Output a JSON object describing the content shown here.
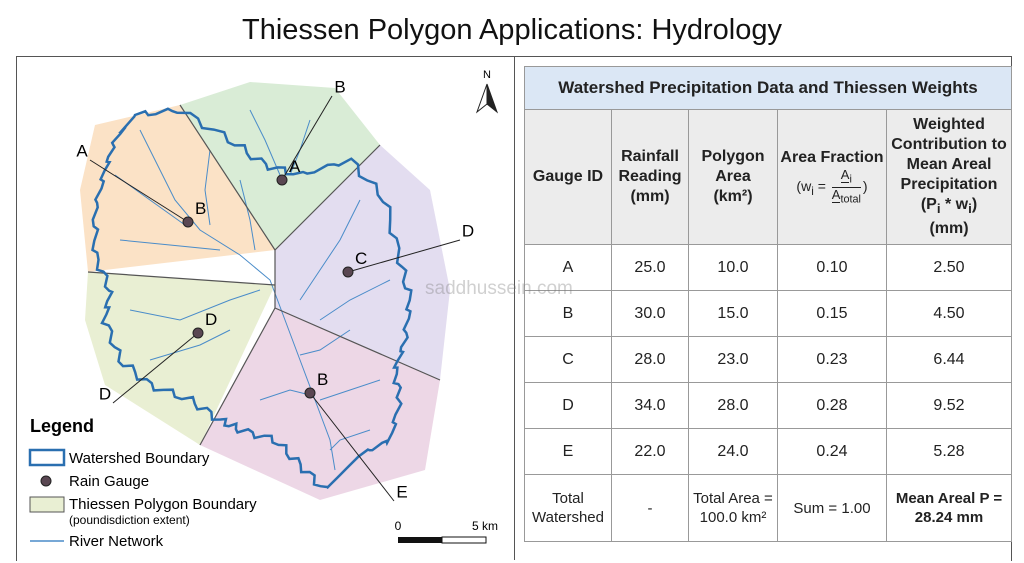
{
  "header": {
    "title": "Thiessen Polygon Applications: Hydrology"
  },
  "map": {
    "north": "N",
    "gauges": [
      "A",
      "B",
      "C",
      "D",
      "B"
    ],
    "callouts": [
      "A",
      "B",
      "D",
      "D",
      "E"
    ],
    "legend": {
      "title": "Legend",
      "items": [
        "Watershed Boundary",
        "Rain Gauge",
        "Thiessen Polygon Boundary",
        "River Network"
      ],
      "note": "(poundisdiction extent)"
    },
    "scale": {
      "start": "0",
      "end": "5 km"
    }
  },
  "watermark": "saddhussein.com",
  "table": {
    "title": "Watershed Precipitation Data and Thiessen Weights",
    "columns": [
      "Gauge ID",
      "Rainfall Reading (mm)",
      {
        "text": "Polygon Area",
        "unit": "(km²)"
      },
      {
        "text": "Area Fraction",
        "lhs": "(w",
        "lhs_sub": "i",
        "eq": "=",
        "num": "A",
        "num_sub": "i",
        "den": "A",
        "den_sub": "total",
        "close": ")"
      },
      {
        "text": "Weighted Contribution to Mean Areal Precipitation",
        "p": "(P",
        "p_sub": "i",
        "mul": " * w",
        "w_sub": "i",
        "close": ")",
        "unit": "(mm)"
      }
    ],
    "rows": [
      [
        "A",
        "25.0",
        "10.0",
        "0.10",
        "2.50"
      ],
      [
        "B",
        "30.0",
        "15.0",
        "0.15",
        "4.50"
      ],
      [
        "C",
        "28.0",
        "23.0",
        "0.23",
        "6.44"
      ],
      [
        "D",
        "34.0",
        "28.0",
        "0.28",
        "9.52"
      ],
      [
        "E",
        "22.0",
        "24.0",
        "0.24",
        "5.28"
      ]
    ],
    "total": [
      "Total Watershed",
      "-",
      "Total Area = 100.0 km²",
      "Sum = 1.00",
      "Mean Areal P = 28.24 mm"
    ]
  }
}
